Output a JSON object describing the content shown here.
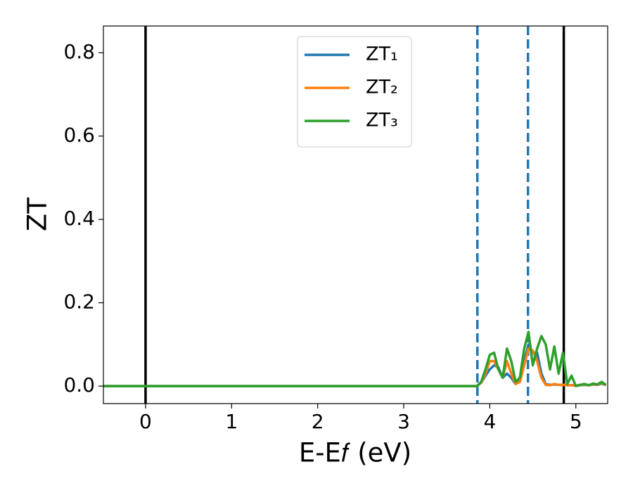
{
  "chart_data": {
    "type": "line",
    "xlabel": "E-E𝑓 (eV)",
    "ylabel": "ZT",
    "x": [
      -0.49,
      3.8,
      3.85,
      3.9,
      3.95,
      4.0,
      4.05,
      4.1,
      4.15,
      4.2,
      4.25,
      4.3,
      4.35,
      4.4,
      4.45,
      4.5,
      4.55,
      4.6,
      4.65,
      4.7,
      4.75,
      4.8,
      4.85,
      4.9,
      4.95,
      5.0,
      5.05,
      5.1,
      5.15,
      5.2,
      5.25,
      5.3,
      5.35
    ],
    "series": [
      {
        "name": "ZT₁",
        "color": "#1f77b4",
        "values": [
          0,
          0,
          0,
          0.008,
          0.025,
          0.04,
          0.05,
          0.045,
          0.02,
          0.03,
          0.02,
          0.005,
          0.02,
          0.06,
          0.1,
          0.08,
          0.08,
          0.03,
          0.005,
          0.003,
          0.004,
          0.003,
          0.003,
          0.002,
          0.002,
          0.001,
          0.002,
          0.003,
          0.002,
          0.004,
          0.003,
          0.006,
          0.002
        ]
      },
      {
        "name": "ZT₂",
        "color": "#ff7f0e",
        "values": [
          0,
          0,
          0,
          0.008,
          0.03,
          0.06,
          0.06,
          0.04,
          0.02,
          0.06,
          0.03,
          0.005,
          0.01,
          0.05,
          0.09,
          0.085,
          0.06,
          0.02,
          0.003,
          0.002,
          0.005,
          0.003,
          0.003,
          0.002,
          0.002,
          0.001,
          0.002,
          0.004,
          0.002,
          0.005,
          0.003,
          0.008,
          0.002
        ]
      },
      {
        "name": "ZT₃",
        "color": "#2ca02c",
        "values": [
          0,
          0,
          0,
          0.01,
          0.04,
          0.075,
          0.08,
          0.04,
          0.02,
          0.09,
          0.06,
          0.01,
          0.02,
          0.09,
          0.13,
          0.05,
          0.09,
          0.12,
          0.1,
          0.04,
          0.095,
          0.03,
          0.08,
          0.005,
          0.025,
          0,
          0.003,
          0.005,
          0.002,
          0.006,
          0.004,
          0.01,
          0.003
        ]
      }
    ],
    "vlines": [
      {
        "x": 0,
        "color": "#000000",
        "dashed": false
      },
      {
        "x": 4.86,
        "color": "#000000",
        "dashed": false
      },
      {
        "x": 3.856,
        "color": "#1f77b4",
        "dashed": true
      },
      {
        "x": 4.444,
        "color": "#1f77b4",
        "dashed": true
      }
    ],
    "xlim": [
      -0.49,
      5.37
    ],
    "ylim": [
      -0.042,
      0.864
    ],
    "xticks": [
      0,
      1,
      2,
      3,
      4,
      5
    ],
    "yticks": [
      {
        "value": 0,
        "label": "0.0"
      },
      0.2,
      0.4,
      0.6,
      0.8
    ],
    "legend": "upper center"
  }
}
